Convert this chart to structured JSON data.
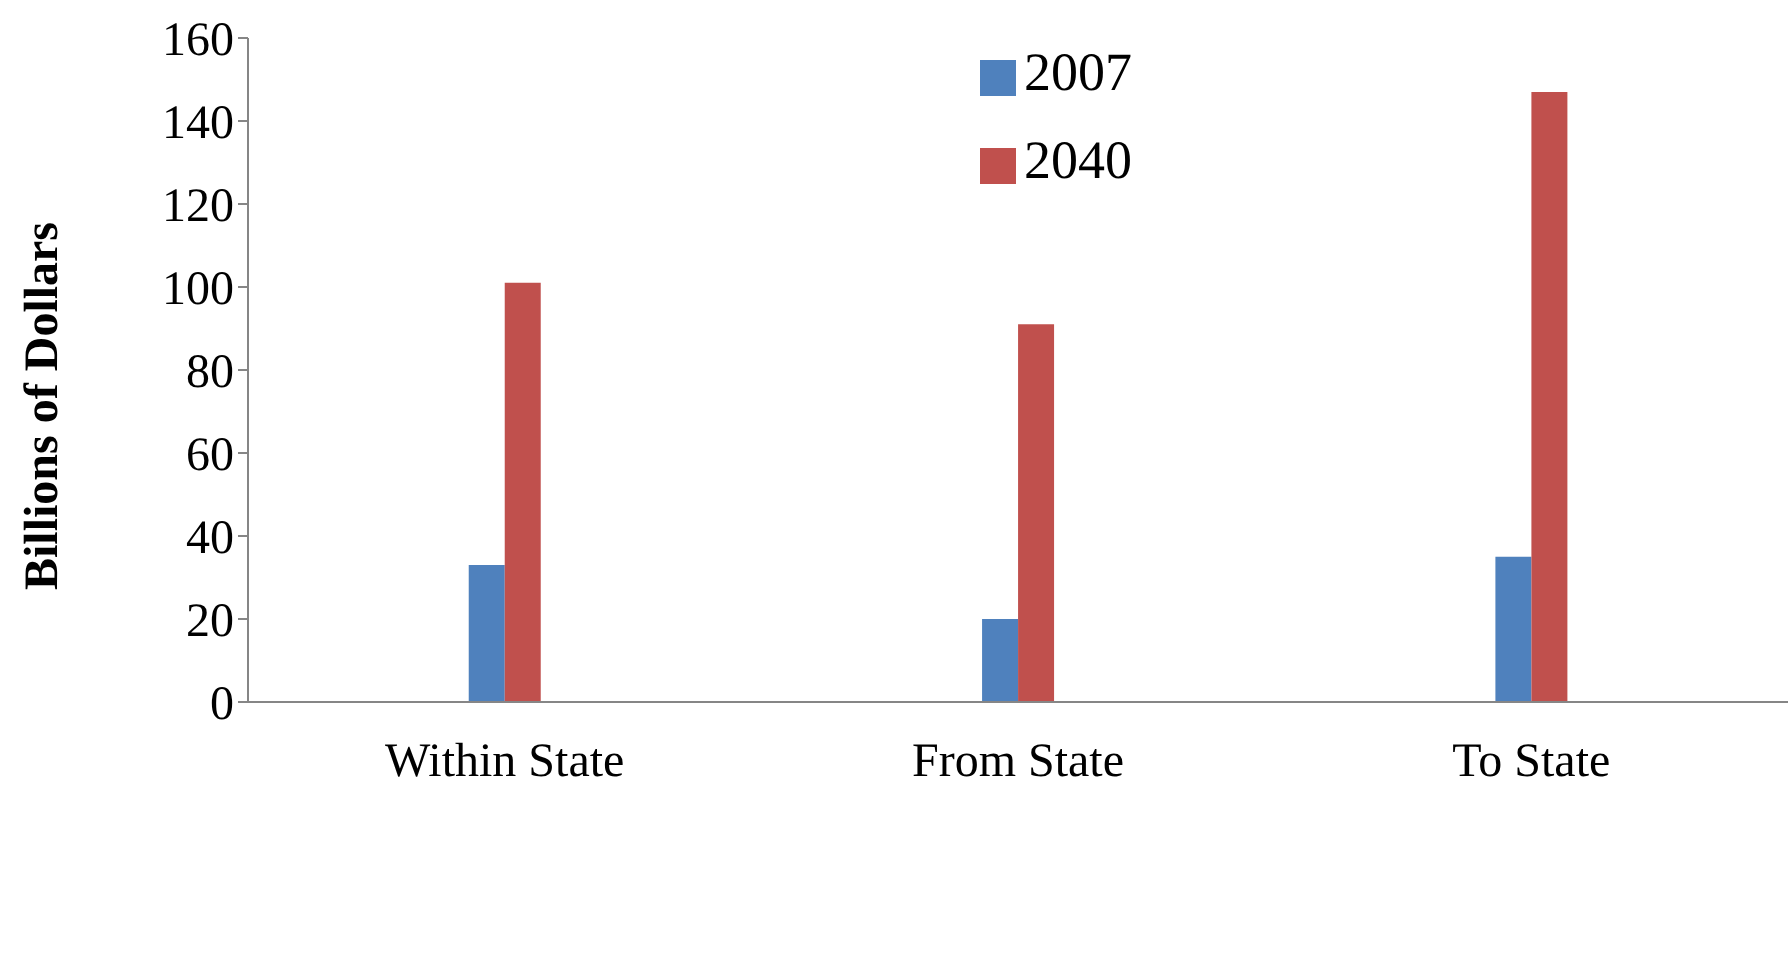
{
  "chart_data": {
    "type": "bar",
    "ylabel": "Billions of Dollars",
    "categories": [
      "Within State",
      "From State",
      "To State"
    ],
    "series": [
      {
        "name": "2007",
        "color": "#4f81bd",
        "values": [
          33,
          20,
          35
        ]
      },
      {
        "name": "2040",
        "color": "#c0504d",
        "values": [
          101,
          91,
          147
        ]
      }
    ],
    "ylim": [
      0,
      160
    ],
    "yticks": [
      0,
      20,
      40,
      60,
      80,
      100,
      120,
      140,
      160
    ],
    "grid": false,
    "legend": "top"
  }
}
